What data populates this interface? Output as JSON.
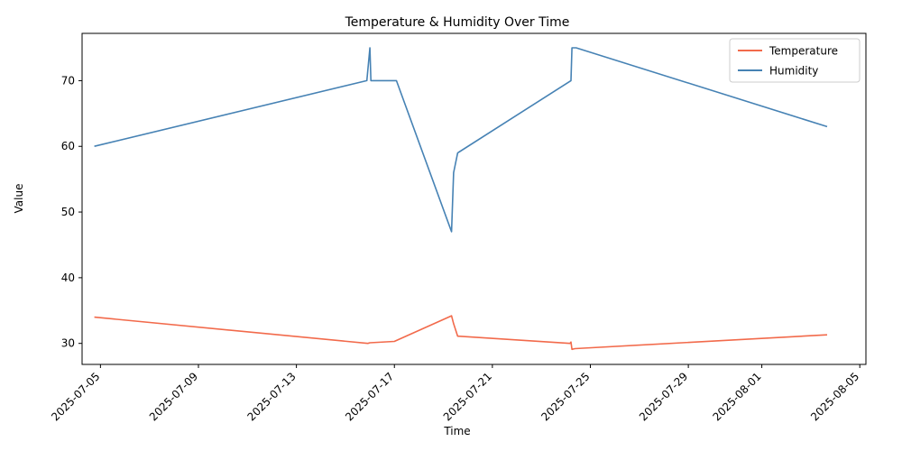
{
  "chart_data": {
    "type": "line",
    "title": "Temperature & Humidity Over Time",
    "xlabel": "Time",
    "ylabel": "Value",
    "xlim": [
      "2025-07-04T06:00",
      "2025-08-05T06:00"
    ],
    "ylim": [
      26.8,
      77.2
    ],
    "x_ticks": [
      "2025-07-05",
      "2025-07-09",
      "2025-07-13",
      "2025-07-17",
      "2025-07-21",
      "2025-07-25",
      "2025-07-29",
      "2025-08-01",
      "2025-08-05"
    ],
    "y_ticks": [
      30,
      40,
      50,
      60,
      70
    ],
    "legend_position": "top-right",
    "grid": false,
    "series": [
      {
        "name": "Temperature",
        "color": "#f26a4b",
        "points": [
          [
            "2025-07-04T18:00",
            34.0
          ],
          [
            "2025-07-15T22:00",
            30.0
          ],
          [
            "2025-07-16T00:00",
            30.1
          ],
          [
            "2025-07-17T00:00",
            30.3
          ],
          [
            "2025-07-19T08:00",
            34.2
          ],
          [
            "2025-07-19T10:00",
            33.0
          ],
          [
            "2025-07-19T14:00",
            31.1
          ],
          [
            "2025-07-24T04:00",
            30.0
          ],
          [
            "2025-07-24T05:00",
            30.2
          ],
          [
            "2025-07-24T06:00",
            29.1
          ],
          [
            "2025-07-24T09:00",
            29.2
          ],
          [
            "2025-08-03T16:00",
            31.3
          ]
        ]
      },
      {
        "name": "Humidity",
        "color": "#4682b4",
        "points": [
          [
            "2025-07-04T18:00",
            60.0
          ],
          [
            "2025-07-15T21:00",
            70.0
          ],
          [
            "2025-07-16T00:00",
            75.0
          ],
          [
            "2025-07-16T01:00",
            70.0
          ],
          [
            "2025-07-17T02:00",
            70.0
          ],
          [
            "2025-07-19T08:00",
            47.0
          ],
          [
            "2025-07-19T10:00",
            56.0
          ],
          [
            "2025-07-19T14:00",
            59.0
          ],
          [
            "2025-07-24T05:00",
            70.0
          ],
          [
            "2025-07-24T06:00",
            75.0
          ],
          [
            "2025-07-24T10:00",
            75.0
          ],
          [
            "2025-08-03T16:00",
            63.0
          ]
        ]
      }
    ]
  }
}
